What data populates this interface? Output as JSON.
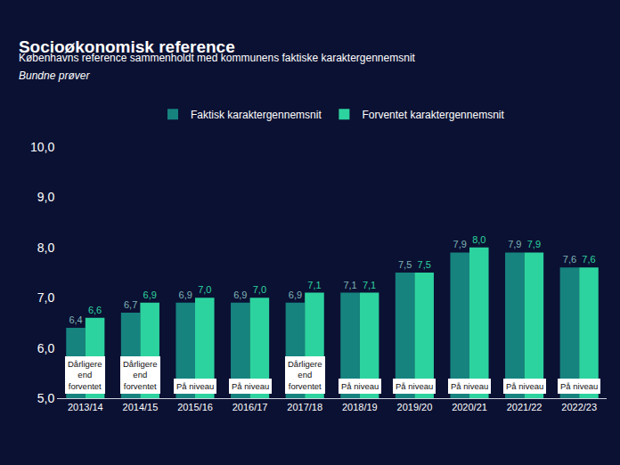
{
  "chart_data": {
    "type": "bar",
    "title": "Socioøkonomisk reference",
    "subtitle": [
      "Københavns reference sammenholdt med kommunens faktiske karaktergennemsnit",
      "Bundne prøver"
    ],
    "categories": [
      "2013/14",
      "2014/15",
      "2015/16",
      "2016/17",
      "2017/18",
      "2018/19",
      "2019/20",
      "2020/21",
      "2021/22",
      "2022/23"
    ],
    "series": [
      {
        "name": "Faktisk karaktergennemsnit",
        "color": "#16837f",
        "values": [
          6.4,
          6.7,
          6.9,
          6.9,
          6.9,
          7.1,
          7.5,
          7.9,
          7.9,
          7.6
        ],
        "value_labels": [
          "6,4",
          "6,7",
          "6,9",
          "6,9",
          "6,9",
          "7,1",
          "7,5",
          "7,9",
          "7,9",
          "7,6"
        ]
      },
      {
        "name": "Forventet karaktergennemsnit",
        "color": "#2dd39f",
        "values": [
          6.6,
          6.9,
          7.0,
          7.0,
          7.1,
          7.1,
          7.5,
          8.0,
          7.9,
          7.6
        ],
        "value_labels": [
          "6,6",
          "6,9",
          "7,0",
          "7,0",
          "7,1",
          "7,1",
          "7,5",
          "8,0",
          "7,9",
          "7,6"
        ]
      }
    ],
    "annotations": [
      "Dårligere end forventet",
      "Dårligere end forventet",
      "På niveau",
      "På niveau",
      "Dårligere end forventet",
      "På niveau",
      "På niveau",
      "På niveau",
      "På niveau",
      "På niveau"
    ],
    "ylim": [
      5,
      10
    ],
    "yticks": [
      {
        "value": 5,
        "label": "5,0"
      },
      {
        "value": 6,
        "label": "6,0"
      },
      {
        "value": 7,
        "label": "7,0"
      },
      {
        "value": 8,
        "label": "8,0"
      },
      {
        "value": 9,
        "label": "9,0"
      },
      {
        "value": 10,
        "label": "10,0"
      }
    ],
    "data_labels": true,
    "legend": "top",
    "grid": false
  }
}
